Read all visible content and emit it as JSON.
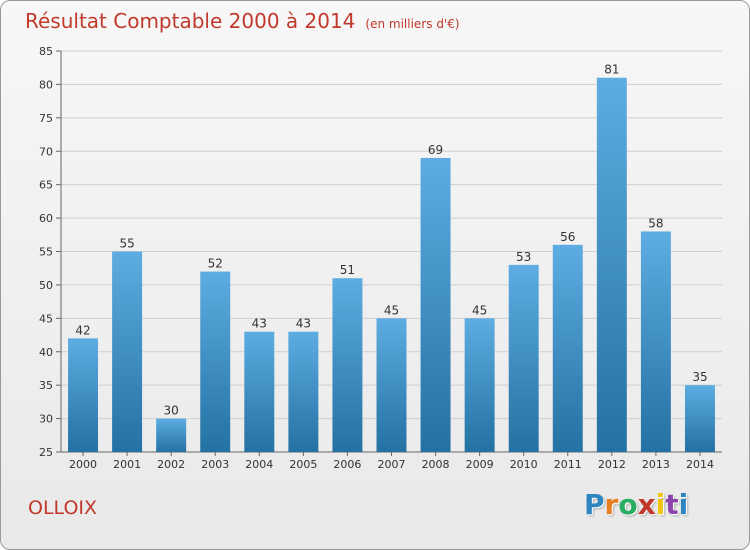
{
  "title": "Résultat Comptable 2000 à 2014",
  "unit_note": "(en milliers d'€)",
  "commune": "OLLOIX",
  "logo": {
    "letters": [
      "P",
      "r",
      "o",
      "x",
      "i",
      "t",
      "i"
    ],
    "colors": [
      "#2e86c1",
      "#e67e22",
      "#27ae60",
      "#c0392b",
      "#f1c40f",
      "#8e44ad",
      "#2e86c1"
    ]
  },
  "colors": {
    "accent": "#c0392b",
    "bar_top": "#5dade2",
    "bar_bottom": "#2471a3",
    "grid": "#cfcfcf",
    "axis_text": "#333333"
  },
  "chart_data": {
    "type": "bar",
    "categories": [
      "2000",
      "2001",
      "2002",
      "2003",
      "2004",
      "2005",
      "2006",
      "2007",
      "2008",
      "2009",
      "2010",
      "2011",
      "2012",
      "2013",
      "2014"
    ],
    "values": [
      42,
      55,
      30,
      52,
      43,
      43,
      51,
      45,
      69,
      45,
      53,
      56,
      81,
      58,
      35
    ],
    "ylim": [
      25,
      85
    ],
    "yticks": [
      25,
      30,
      35,
      40,
      45,
      50,
      55,
      60,
      65,
      70,
      75,
      80,
      85
    ],
    "grid": true,
    "data_labels": true
  }
}
